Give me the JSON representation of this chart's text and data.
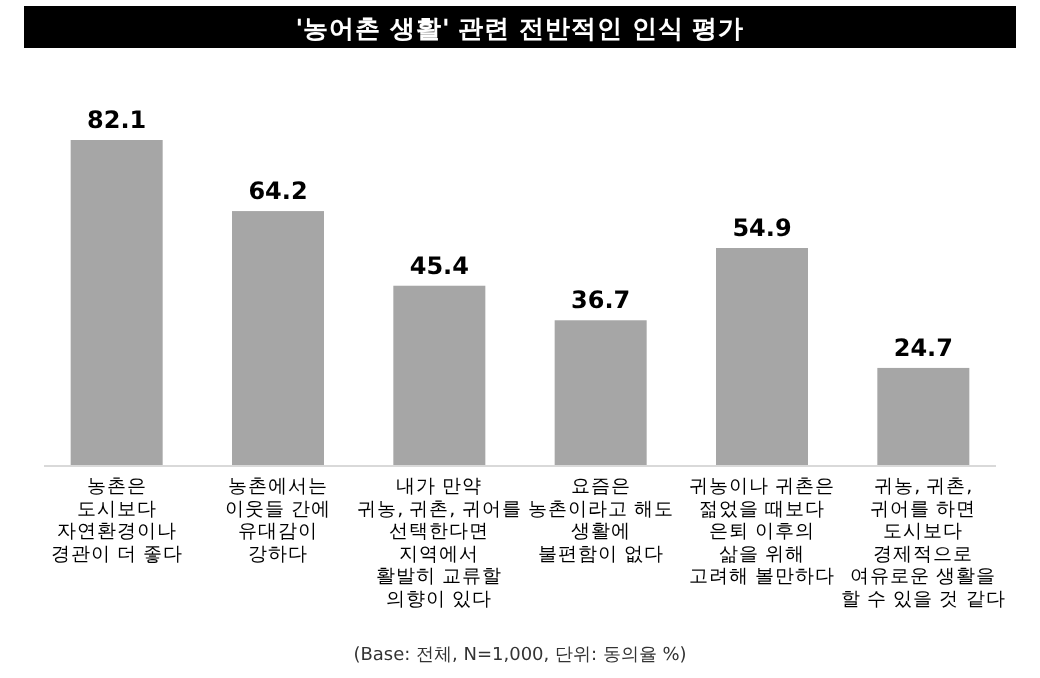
{
  "chart_data": {
    "type": "bar",
    "title": "'농어촌 생활' 관련 전반적인 인식 평가",
    "categories": [
      "농촌은\n도시보다\n자연환경이나\n경관이 더 좋다",
      "농촌에서는\n이웃들 간에\n유대감이\n강하다",
      "내가 만약\n귀농, 귀촌, 귀어를\n선택한다면\n지역에서\n활발히 교류할\n의향이 있다",
      "요즘은\n농촌이라고 해도\n생활에\n불편함이 없다",
      "귀농이나 귀촌은\n젊었을 때보다\n은퇴 이후의\n삶을 위해\n고려해 볼만하다",
      "귀농, 귀촌,\n귀어를 하면\n도시보다\n경제적으로\n여유로운 생활을\n할 수 있을 것 같다"
    ],
    "values": [
      82.1,
      64.2,
      45.4,
      36.7,
      54.9,
      24.7
    ],
    "color": "#a6a6a6",
    "data_labels": true,
    "annotations": [
      "(Base: 전체, N=1,000, 단위: 동의율 %)"
    ]
  }
}
